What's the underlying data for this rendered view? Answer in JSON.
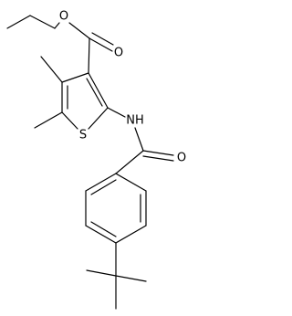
{
  "atoms": [
    {
      "label": "O"
    },
    {
      "label": "O"
    },
    {
      "label": "S"
    },
    {
      "label": "NH"
    },
    {
      "label": "O"
    }
  ]
}
